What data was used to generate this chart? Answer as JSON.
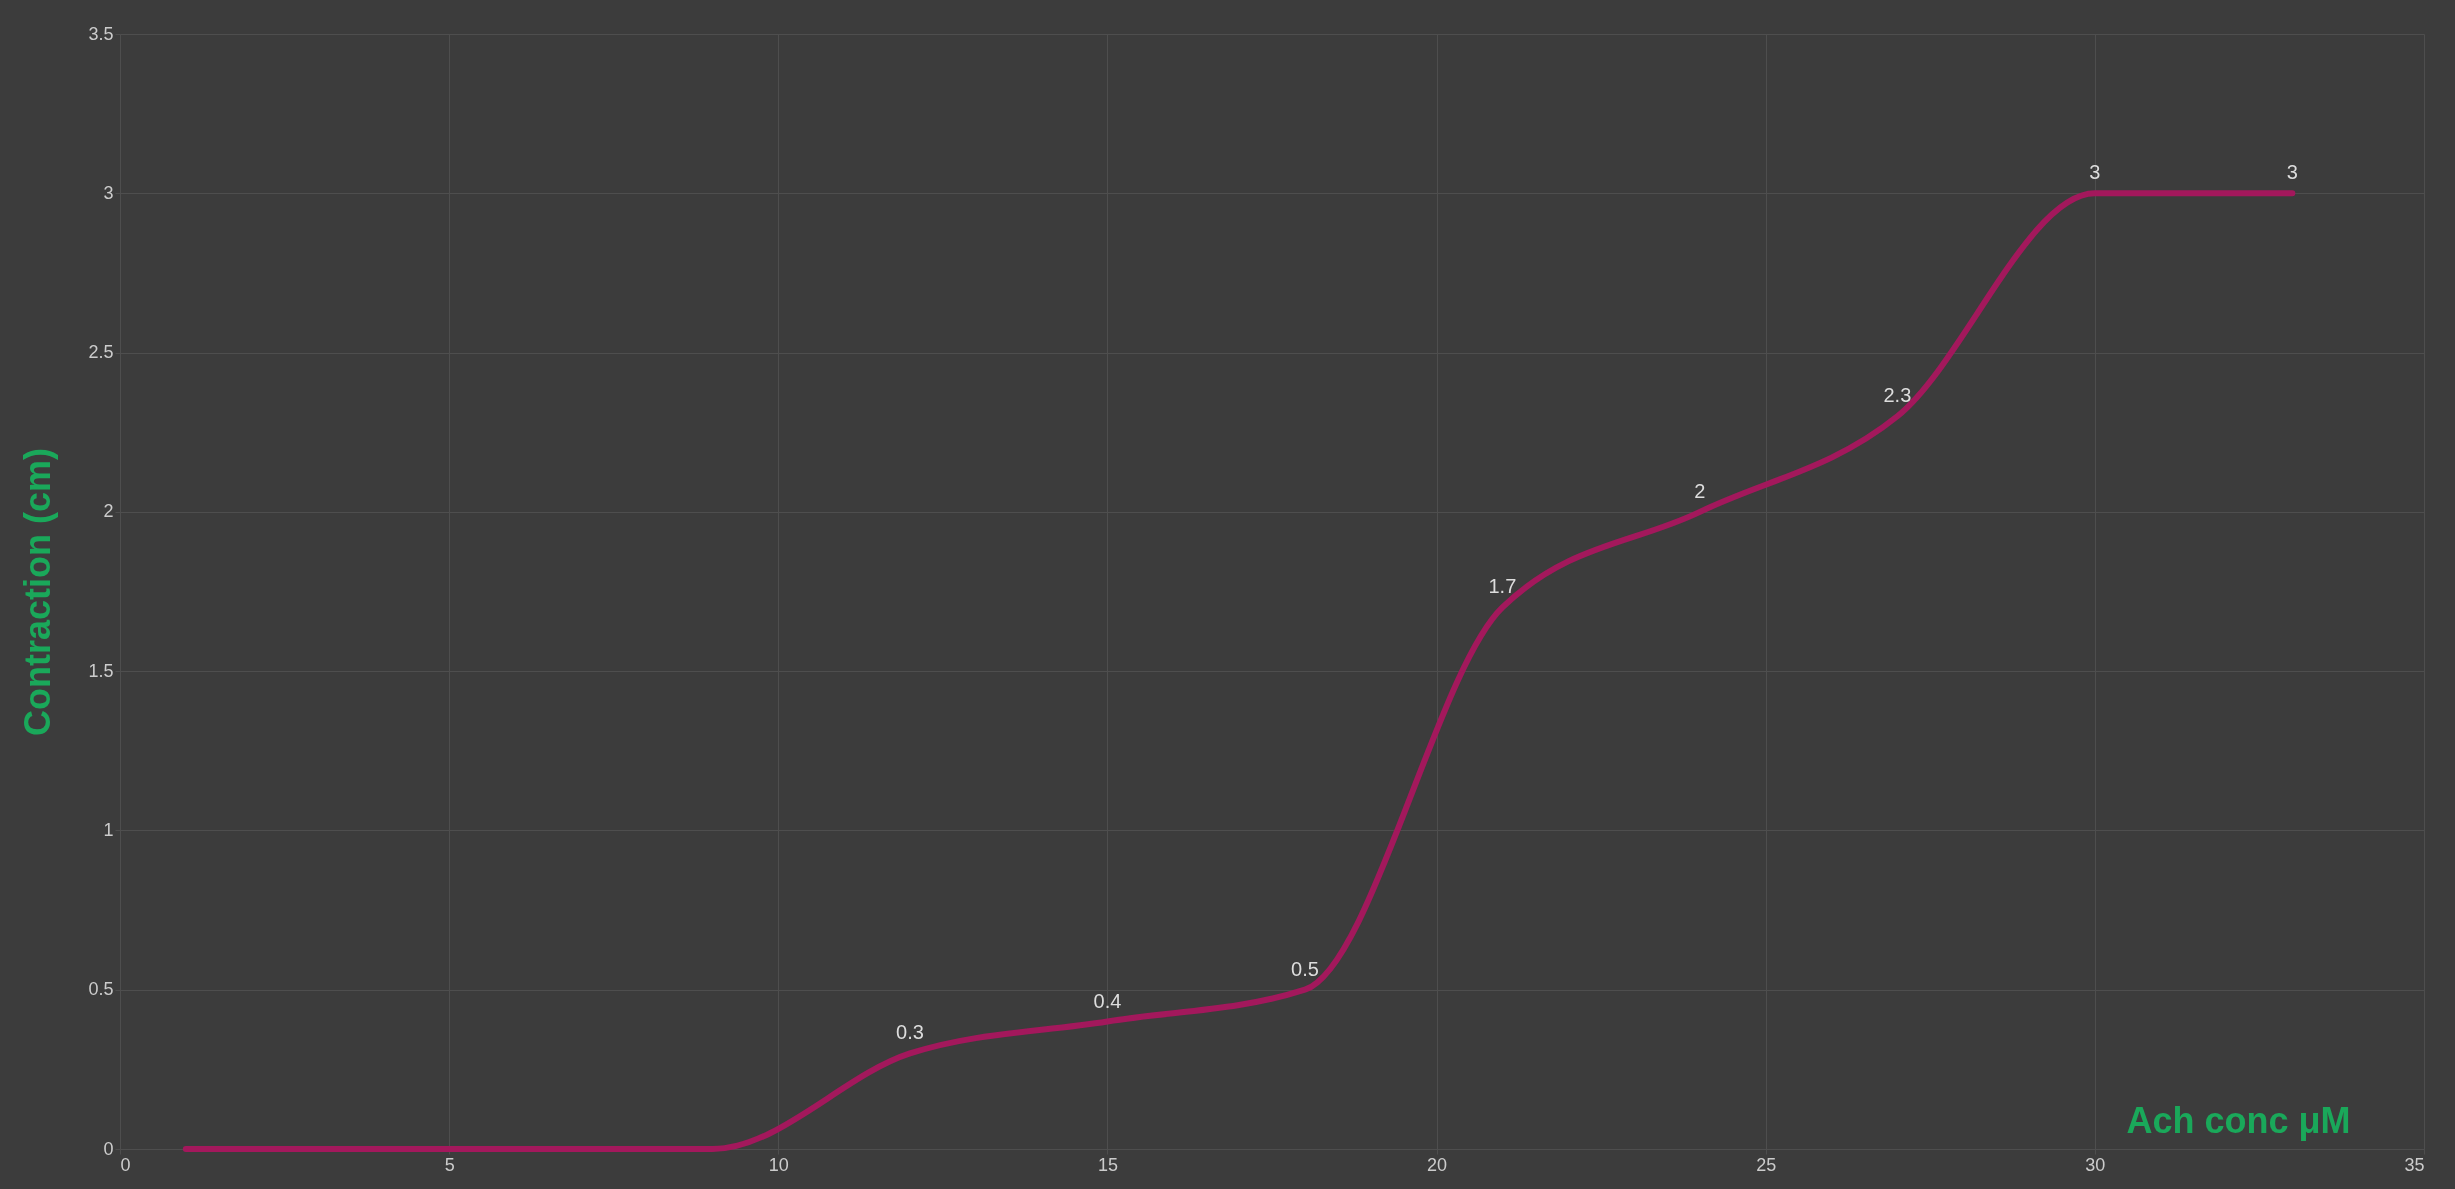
{
  "chart_data": {
    "type": "line",
    "xlabel": "Ach conc μM",
    "ylabel": "Contraction (cm)",
    "x": [
      1,
      3,
      6,
      9,
      12,
      15,
      18,
      21,
      24,
      27,
      30,
      33
    ],
    "series": [
      {
        "color": "#a3185c",
        "values": [
          0,
          0,
          0,
          0,
          0.3,
          0.4,
          0.5,
          1.7,
          2,
          2.3,
          3,
          3
        ],
        "value_labels": [
          null,
          null,
          null,
          null,
          "0.3",
          "0.4",
          "0.5",
          "1.7",
          "2",
          "2.3",
          "3",
          "3"
        ]
      }
    ],
    "xlim": [
      0,
      35
    ],
    "xticks": [
      0,
      5,
      10,
      15,
      20,
      25,
      30,
      35
    ],
    "ylim": [
      0,
      3.5
    ],
    "yticks": [
      0,
      0.5,
      1,
      1.5,
      2,
      2.5,
      3,
      3.5
    ],
    "grid": true,
    "marker": "none",
    "line_style": "solid"
  }
}
